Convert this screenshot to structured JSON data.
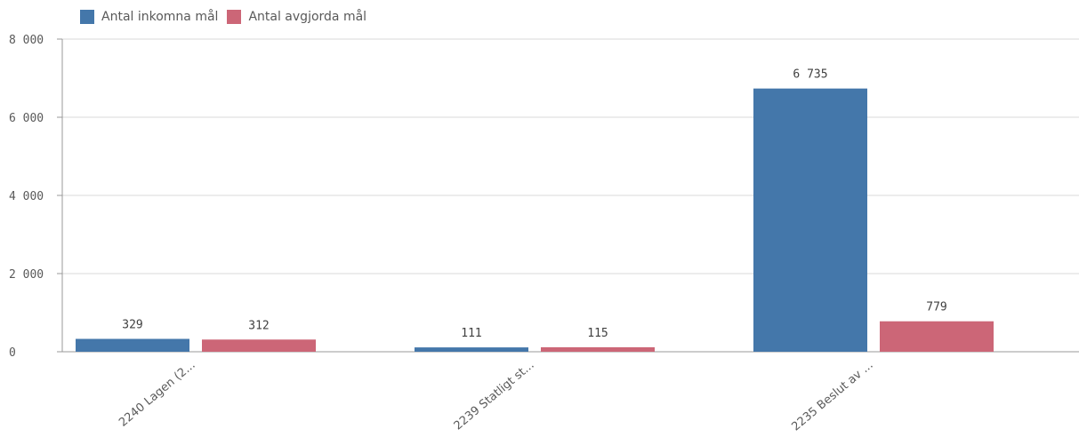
{
  "chart_data": {
    "type": "bar",
    "categories": [
      "2240 Lagen (2...",
      "2239 Statligt st...",
      "2235 Beslut av ..."
    ],
    "series": [
      {
        "name": "Antal inkomna mål",
        "color": "#4477aa",
        "values": [
          329,
          111,
          6735
        ],
        "labels": [
          "329",
          "111",
          "6 735"
        ]
      },
      {
        "name": "Antal avgjorda mål",
        "color": "#cc6677",
        "values": [
          312,
          115,
          779
        ],
        "labels": [
          "312",
          "115",
          "779"
        ]
      }
    ],
    "yticks": [
      {
        "value": 0,
        "label": "0"
      },
      {
        "value": 2000,
        "label": "2 000"
      },
      {
        "value": 4000,
        "label": "4 000"
      },
      {
        "value": 6000,
        "label": "6 000"
      },
      {
        "value": 8000,
        "label": "8 000"
      }
    ],
    "ylim": [
      0,
      8000
    ],
    "xlabel": "",
    "ylabel": "",
    "grid": true,
    "legend_position": "top-left"
  }
}
